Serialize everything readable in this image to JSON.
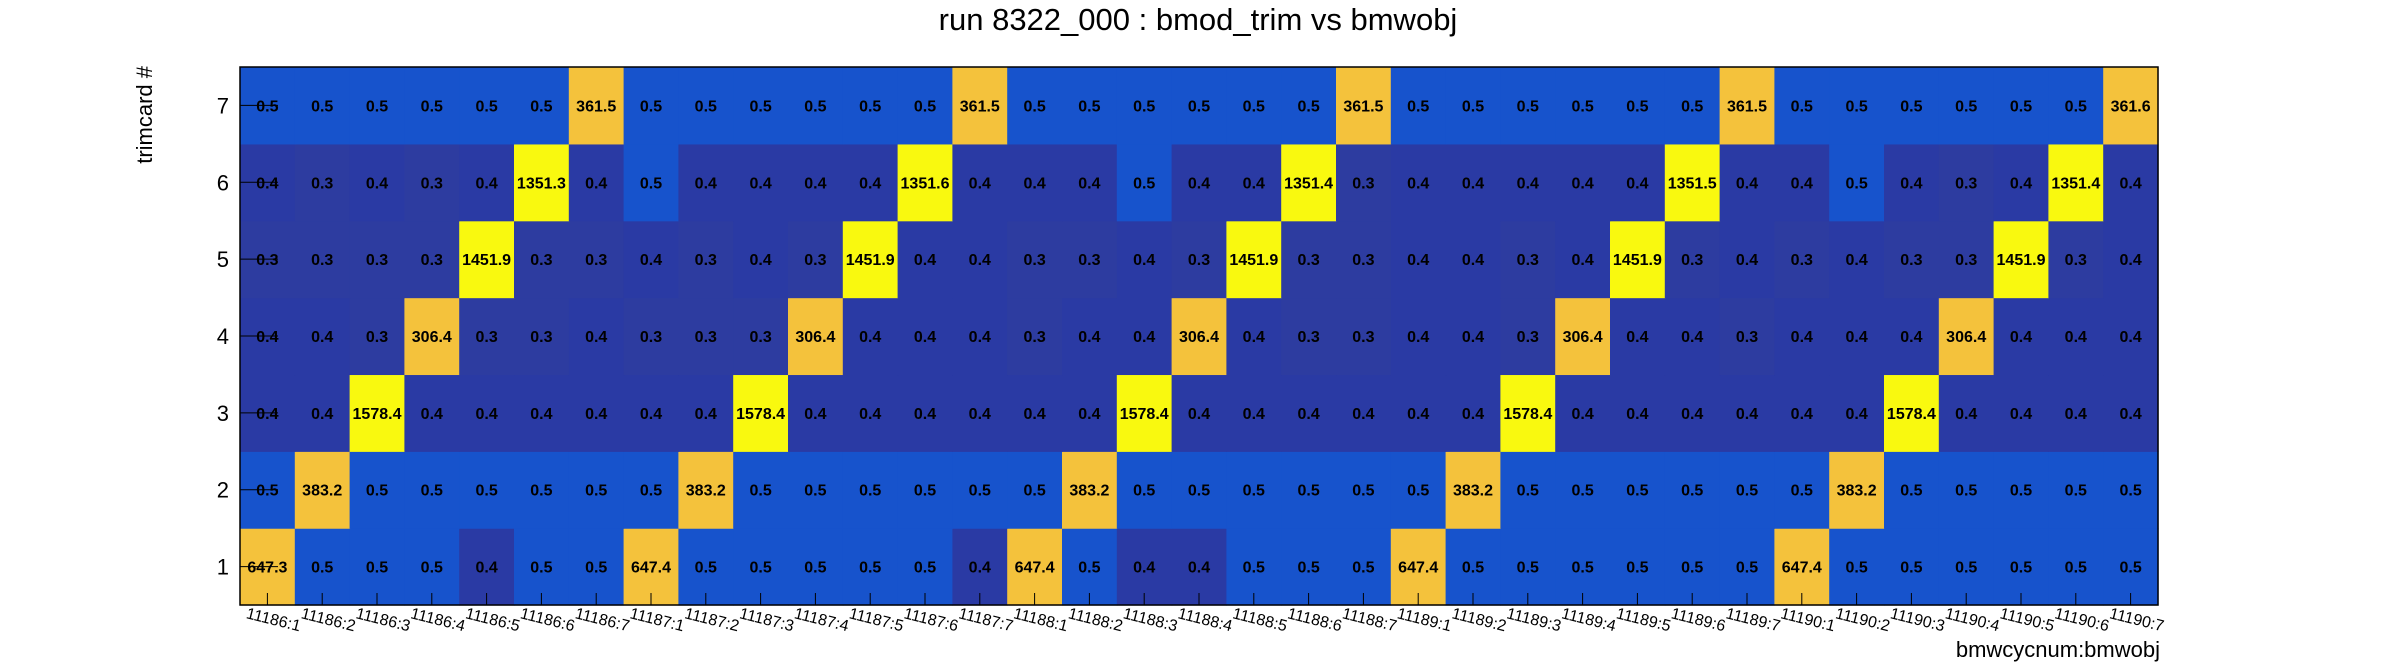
{
  "chart_data": {
    "type": "heatmap",
    "title": "run 8322_000 : bmod_trim vs bmwobj",
    "xlabel": "bmwcycnum:bmwobj",
    "ylabel": "trimcard #",
    "x_categories": [
      "11186:1",
      "11186:2",
      "11186:3",
      "11186:4",
      "11186:5",
      "11186:6",
      "11186:7",
      "11187:1",
      "11187:2",
      "11187:3",
      "11187:4",
      "11187:5",
      "11187:6",
      "11187:7",
      "11188:1",
      "11188:2",
      "11188:3",
      "11188:4",
      "11188:5",
      "11188:6",
      "11188:7",
      "11189:1",
      "11189:2",
      "11189:3",
      "11189:4",
      "11189:5",
      "11189:6",
      "11189:7",
      "11190:1",
      "11190:2",
      "11190:3",
      "11190:4",
      "11190:5",
      "11190:6",
      "11190:7"
    ],
    "y_categories": [
      "1",
      "2",
      "3",
      "4",
      "5",
      "6",
      "7"
    ],
    "rows": [
      {
        "y": "1",
        "values": [
          "647.3",
          "0.5",
          "0.5",
          "0.5",
          "0.4",
          "0.5",
          "0.5",
          "647.4",
          "0.5",
          "0.5",
          "0.5",
          "0.5",
          "0.5",
          "0.4",
          "647.4",
          "0.5",
          "0.4",
          "0.4",
          "0.5",
          "0.5",
          "0.5",
          "647.4",
          "0.5",
          "0.5",
          "0.5",
          "0.5",
          "0.5",
          "0.5",
          "647.4",
          "0.5",
          "0.5",
          "0.5",
          "0.5",
          "0.5",
          "0.5"
        ]
      },
      {
        "y": "2",
        "values": [
          "0.5",
          "383.2",
          "0.5",
          "0.5",
          "0.5",
          "0.5",
          "0.5",
          "0.5",
          "383.2",
          "0.5",
          "0.5",
          "0.5",
          "0.5",
          "0.5",
          "0.5",
          "383.2",
          "0.5",
          "0.5",
          "0.5",
          "0.5",
          "0.5",
          "0.5",
          "383.2",
          "0.5",
          "0.5",
          "0.5",
          "0.5",
          "0.5",
          "0.5",
          "383.2",
          "0.5",
          "0.5",
          "0.5",
          "0.5",
          "0.5"
        ]
      },
      {
        "y": "3",
        "values": [
          "0.4",
          "0.4",
          "1578.4",
          "0.4",
          "0.4",
          "0.4",
          "0.4",
          "0.4",
          "0.4",
          "1578.4",
          "0.4",
          "0.4",
          "0.4",
          "0.4",
          "0.4",
          "0.4",
          "1578.4",
          "0.4",
          "0.4",
          "0.4",
          "0.4",
          "0.4",
          "0.4",
          "1578.4",
          "0.4",
          "0.4",
          "0.4",
          "0.4",
          "0.4",
          "0.4",
          "1578.4",
          "0.4",
          "0.4",
          "0.4",
          "0.4"
        ]
      },
      {
        "y": "4",
        "values": [
          "0.4",
          "0.4",
          "0.3",
          "306.4",
          "0.3",
          "0.3",
          "0.4",
          "0.3",
          "0.3",
          "0.3",
          "306.4",
          "0.4",
          "0.4",
          "0.4",
          "0.3",
          "0.4",
          "0.4",
          "306.4",
          "0.4",
          "0.3",
          "0.3",
          "0.4",
          "0.4",
          "0.3",
          "306.4",
          "0.4",
          "0.4",
          "0.3",
          "0.4",
          "0.4",
          "0.4",
          "306.4",
          "0.4",
          "0.4",
          "0.4"
        ]
      },
      {
        "y": "5",
        "values": [
          "0.3",
          "0.3",
          "0.3",
          "0.3",
          "1451.9",
          "0.3",
          "0.3",
          "0.4",
          "0.3",
          "0.4",
          "0.3",
          "1451.9",
          "0.4",
          "0.4",
          "0.3",
          "0.3",
          "0.4",
          "0.3",
          "1451.9",
          "0.3",
          "0.3",
          "0.4",
          "0.4",
          "0.3",
          "0.4",
          "1451.9",
          "0.3",
          "0.4",
          "0.3",
          "0.4",
          "0.3",
          "0.3",
          "1451.9",
          "0.3",
          "0.4"
        ]
      },
      {
        "y": "6",
        "values": [
          "0.4",
          "0.3",
          "0.4",
          "0.3",
          "0.4",
          "1351.3",
          "0.4",
          "0.5",
          "0.4",
          "0.4",
          "0.4",
          "0.4",
          "1351.6",
          "0.4",
          "0.4",
          "0.4",
          "0.5",
          "0.4",
          "0.4",
          "1351.4",
          "0.3",
          "0.4",
          "0.4",
          "0.4",
          "0.4",
          "0.4",
          "1351.5",
          "0.4",
          "0.4",
          "0.5",
          "0.4",
          "0.3",
          "0.4",
          "1351.4",
          "0.4"
        ]
      },
      {
        "y": "7",
        "values": [
          "0.5",
          "0.5",
          "0.5",
          "0.5",
          "0.5",
          "0.5",
          "361.5",
          "0.5",
          "0.5",
          "0.5",
          "0.5",
          "0.5",
          "0.5",
          "361.5",
          "0.5",
          "0.5",
          "0.5",
          "0.5",
          "0.5",
          "0.5",
          "361.5",
          "0.5",
          "0.5",
          "0.5",
          "0.5",
          "0.5",
          "0.5",
          "361.5",
          "0.5",
          "0.5",
          "0.5",
          "0.5",
          "0.5",
          "0.5",
          "361.6"
        ]
      }
    ],
    "color_scale": {
      "0.3": "#2d3ca0",
      "0.4": "#2a3aa4",
      "0.5": "#1753cc",
      "300-400": "#f4c23c",
      "1300-1600": "#f9f90f"
    },
    "grid": false,
    "legend": "none"
  }
}
